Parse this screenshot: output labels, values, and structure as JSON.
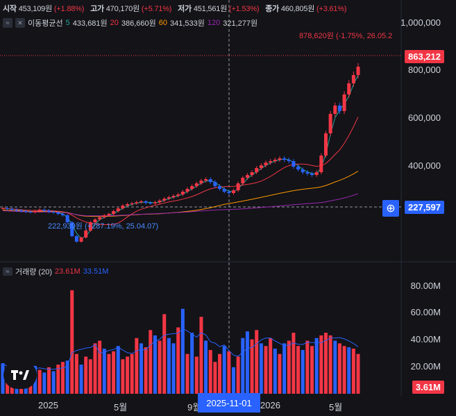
{
  "ohlc": {
    "open_label": "시작",
    "open_value": "453,109원",
    "open_change": "(+1.88%)",
    "high_label": "고가",
    "high_value": "470,170원",
    "high_change": "(+5.71%)",
    "low_label": "저가",
    "low_value": "451,561원",
    "low_change": "(+1.53%)",
    "close_label": "종가",
    "close_value": "460,805원",
    "close_change": "(+3.61%)"
  },
  "ma": {
    "title": "이동평균선",
    "items": [
      {
        "period": "5",
        "value": "433,681원",
        "color": "#26a69a"
      },
      {
        "period": "20",
        "value": "386,660원",
        "color": "#f23645"
      },
      {
        "period": "60",
        "value": "341,533원",
        "color": "#ff9800"
      },
      {
        "period": "120",
        "value": "321,277원",
        "color": "#9c27b0"
      }
    ]
  },
  "price_axis": {
    "ticks": [
      "1,000,000",
      "800,000",
      "600,000",
      "400,000"
    ],
    "last_price": "863,212",
    "crosshair_price": "227,597",
    "last_color": "#f23645",
    "crosshair_color": "#2962ff"
  },
  "annotations": {
    "high": "878,620원 (-1.75%, 26.05.2",
    "low": "222,939원 (+287.19%, 25.04.07)"
  },
  "volume": {
    "title": "거래량 (20)",
    "value1": "23.61M",
    "value2": "33.51M",
    "ticks": [
      "80.00M",
      "60.00M",
      "40.00M",
      "20.00M"
    ],
    "last": "3.61M"
  },
  "time_axis": {
    "labels": [
      "2025",
      "5월",
      "9월",
      "2026",
      "5월"
    ],
    "crosshair_date": "2025-11-01"
  },
  "chart_data": {
    "type": "candlestick",
    "price_range": [
      200000,
      1050000
    ],
    "price_series": [
      350000,
      348000,
      345000,
      342000,
      340000,
      338000,
      336000,
      340000,
      345000,
      342000,
      338000,
      335000,
      330000,
      325000,
      300000,
      250000,
      230000,
      245000,
      270000,
      300000,
      310000,
      318000,
      325000,
      330000,
      340000,
      350000,
      360000,
      365000,
      368000,
      372000,
      375000,
      370000,
      368000,
      372000,
      378000,
      385000,
      390000,
      395000,
      400000,
      410000,
      420000,
      430000,
      440000,
      450000,
      455000,
      445000,
      430000,
      420000,
      410000,
      405000,
      415000,
      440000,
      460000,
      470000,
      480000,
      495000,
      505000,
      515000,
      520000,
      525000,
      530000,
      525000,
      520000,
      500000,
      490000,
      480000,
      475000,
      470000,
      480000,
      540000,
      620000,
      690000,
      720000,
      700000,
      760000,
      800000,
      830000,
      860000
    ],
    "volume_range": [
      0,
      90
    ],
    "volume_series": [
      23,
      18,
      15,
      20,
      22,
      17,
      19,
      21,
      18,
      16,
      20,
      17,
      22,
      24,
      25,
      78,
      30,
      22,
      28,
      26,
      38,
      40,
      34,
      30,
      32,
      36,
      26,
      28,
      30,
      42,
      38,
      35,
      48,
      44,
      40,
      60,
      42,
      38,
      50,
      64,
      30,
      46,
      28,
      58,
      40,
      33,
      24,
      30,
      36,
      32,
      20,
      28,
      42,
      47,
      41,
      48,
      38,
      36,
      42,
      34,
      30,
      38,
      40,
      46,
      36,
      33,
      40,
      36,
      42,
      44,
      46,
      44,
      40,
      38,
      36,
      35,
      34,
      30
    ],
    "volume_up": [
      false,
      true,
      true,
      false,
      true,
      false,
      true,
      false,
      true,
      false,
      true,
      false,
      true,
      true,
      false,
      true,
      true,
      false,
      true,
      true,
      true,
      true,
      false,
      true,
      true,
      false,
      true,
      true,
      true,
      true,
      false,
      true,
      true,
      false,
      true,
      true,
      false,
      false,
      true,
      false,
      true,
      false,
      true,
      true,
      false,
      true,
      true,
      true,
      false,
      true,
      false,
      true,
      false,
      false,
      true,
      true,
      false,
      true,
      true,
      false,
      true,
      false,
      true,
      true,
      true,
      false,
      true,
      true,
      false,
      true,
      true,
      true,
      false,
      true,
      true,
      false,
      true,
      true
    ]
  }
}
